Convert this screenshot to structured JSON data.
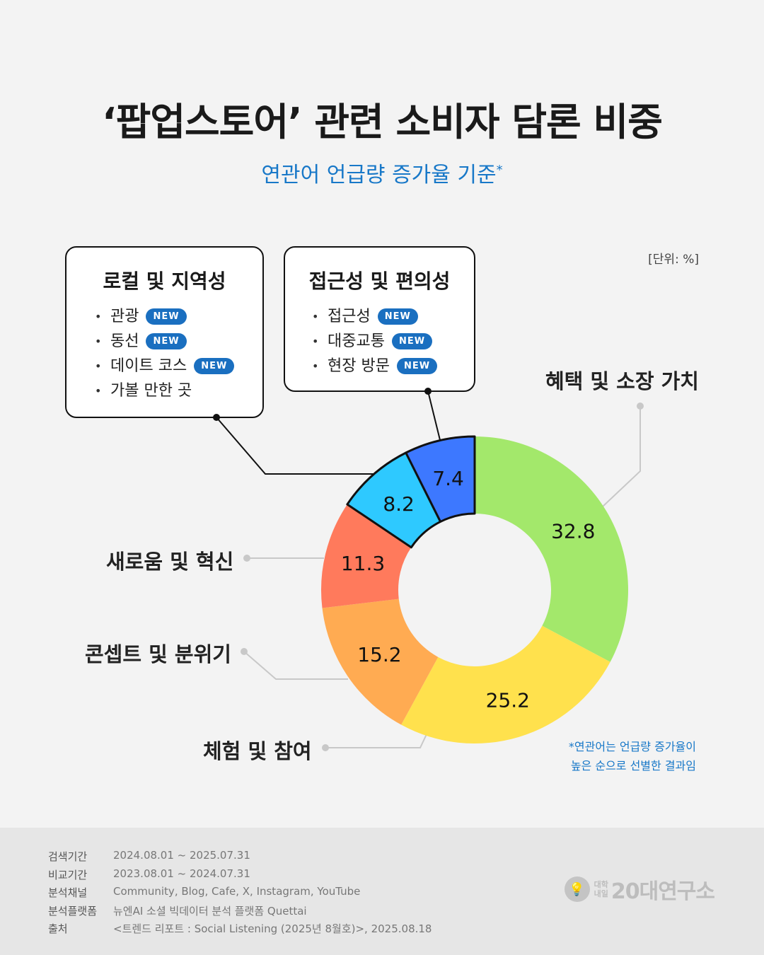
{
  "title": "‘팝업스토어’ 관련 소비자 담론 비중",
  "subtitle": "연관어 언급량 증가율 기준",
  "subtitle_mark": "*",
  "unit": "[단위: %]",
  "callouts": [
    {
      "title": "로컬 및 지역성",
      "items": [
        {
          "text": "관광",
          "badge": "NEW"
        },
        {
          "text": "동선",
          "badge": "NEW"
        },
        {
          "text": "데이트 코스",
          "badge": "NEW"
        },
        {
          "text": "가볼 만한 곳",
          "badge": ""
        }
      ]
    },
    {
      "title": "접근성 및 편의성",
      "items": [
        {
          "text": "접근성",
          "badge": "NEW"
        },
        {
          "text": "대중교통",
          "badge": "NEW"
        },
        {
          "text": "현장 방문",
          "badge": "NEW"
        }
      ]
    }
  ],
  "chart_data": {
    "type": "pie",
    "donut": true,
    "unit": "%",
    "categories": [
      "혜택 및 소장 가치",
      "체험 및 참여",
      "콘셉트 및 분위기",
      "새로움 및 혁신",
      "로컬 및 지역성",
      "접근성 및 편의성"
    ],
    "values": [
      32.8,
      25.2,
      15.2,
      11.3,
      8.2,
      7.4
    ],
    "colors": [
      "#a3e86b",
      "#ffe14d",
      "#ffab52",
      "#ff7a5c",
      "#2ec9ff",
      "#3d78ff"
    ],
    "labels": [
      "32.8",
      "25.2",
      "15.2",
      "11.3",
      "8.2",
      "7.4"
    ]
  },
  "footnote": [
    "*연관어는 언급량 증가율이",
    "높은 순으로 선별한 결과임"
  ],
  "meta": [
    {
      "label": "검색기간",
      "value": "2024.08.01 ~ 2025.07.31"
    },
    {
      "label": "비교기간",
      "value": "2023.08.01 ~ 2024.07.31"
    },
    {
      "label": "분석채널",
      "value": "Community, Blog, Cafe, X, Instagram, YouTube"
    },
    {
      "label": "분석플랫폼",
      "value": "뉴엔AI 소셜 빅데이터 분석 플랫폼 Quettai"
    },
    {
      "label": "출처",
      "value": "<트렌드 리포트 : Social Listening (2025년 8월호)>, 2025.08.18"
    }
  ],
  "logo": {
    "small_top": "대학",
    "small_bottom": "내일",
    "big": "20대연구소",
    "icon": "lightbulb-icon"
  }
}
